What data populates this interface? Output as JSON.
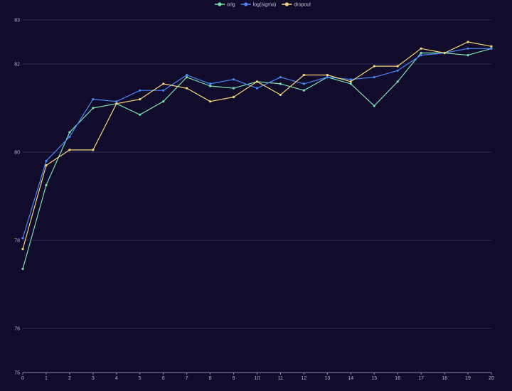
{
  "chart_data": {
    "type": "line",
    "title": "",
    "xlabel": "",
    "ylabel": "",
    "x": [
      0,
      1,
      2,
      3,
      4,
      5,
      6,
      7,
      8,
      9,
      10,
      11,
      12,
      13,
      14,
      15,
      16,
      17,
      18,
      19,
      20
    ],
    "xlim": [
      0,
      20
    ],
    "ylim": [
      75,
      83
    ],
    "y_ticks": [
      75,
      76,
      78,
      80,
      82,
      83
    ],
    "grid": true,
    "legend_position": "top-center",
    "series": [
      {
        "name": "orig",
        "color": "#7be0b0",
        "values": [
          77.35,
          79.25,
          80.45,
          81.0,
          81.1,
          80.85,
          81.15,
          81.7,
          81.5,
          81.45,
          81.6,
          81.55,
          81.4,
          81.7,
          81.55,
          81.05,
          81.6,
          82.25,
          82.25,
          82.2,
          82.35
        ]
      },
      {
        "name": "log(sigma)",
        "color": "#4a86f5",
        "values": [
          78.05,
          79.8,
          80.35,
          81.2,
          81.15,
          81.4,
          81.4,
          81.75,
          81.55,
          81.65,
          81.45,
          81.7,
          81.55,
          81.7,
          81.65,
          81.7,
          81.85,
          82.2,
          82.25,
          82.35,
          82.35
        ]
      },
      {
        "name": "dropout",
        "color": "#f5d77a",
        "values": [
          77.8,
          79.7,
          80.05,
          80.05,
          81.1,
          81.2,
          81.55,
          81.45,
          81.15,
          81.25,
          81.6,
          81.3,
          81.75,
          81.75,
          81.6,
          81.95,
          81.95,
          82.35,
          82.25,
          82.5,
          82.4
        ]
      }
    ]
  }
}
